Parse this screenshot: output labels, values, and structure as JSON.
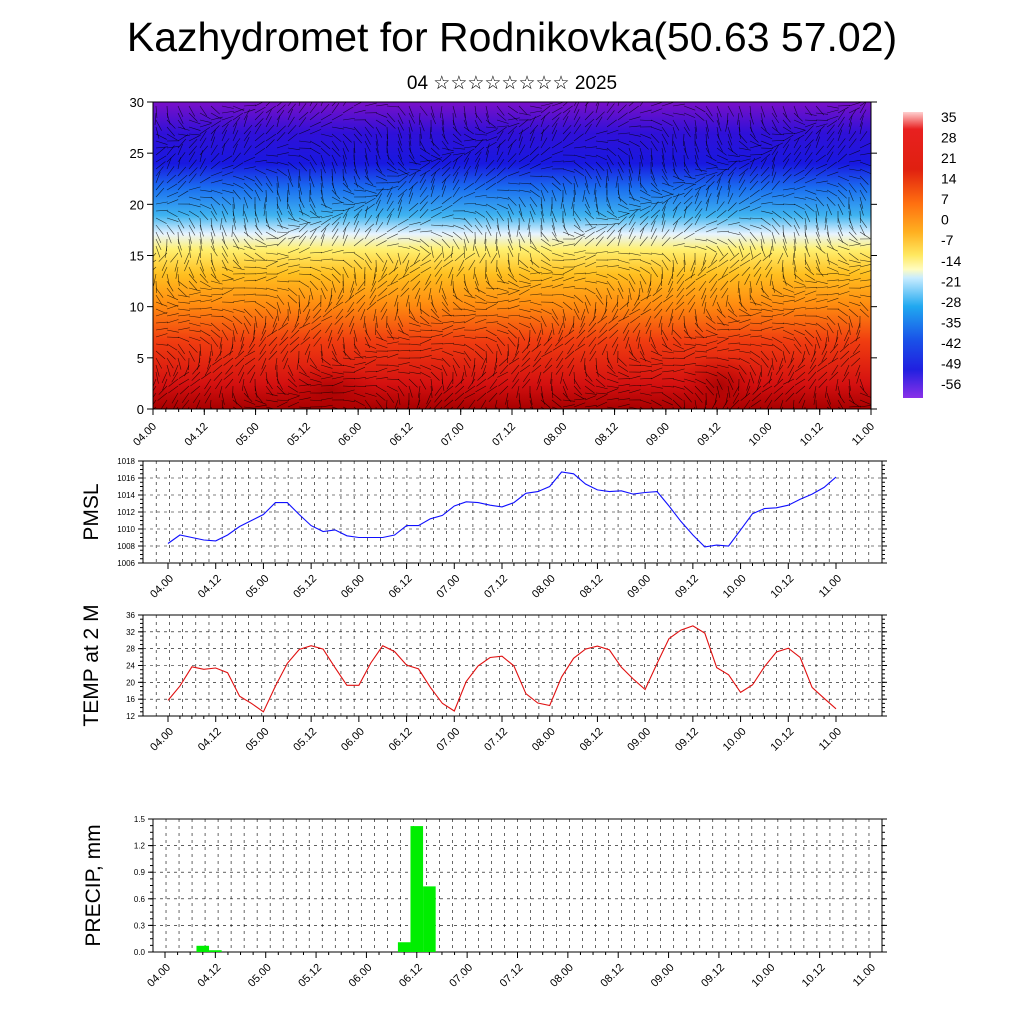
{
  "title": "Kazhydromet for Rodnikovka(50.63 57.02)",
  "subtitle": "04 ☆☆☆☆☆☆☆☆ 2025",
  "chart_data": [
    {
      "type": "heatmap",
      "name": "temperature-wind-cross-section",
      "x_ticks": [
        "04.00",
        "04.12",
        "05.00",
        "05.12",
        "06.00",
        "06.12",
        "07.00",
        "07.12",
        "08.00",
        "08.12",
        "09.00",
        "09.12",
        "10.00",
        "10.12",
        "11.00"
      ],
      "y_ticks": [
        0,
        5,
        10,
        15,
        20,
        25,
        30
      ],
      "ylim": [
        0,
        30
      ],
      "colorbar_labels": [
        "35",
        "28",
        "21",
        "14",
        "7",
        "0",
        "-7",
        "-14",
        "-21",
        "-28",
        "-35",
        "-42",
        "-49",
        "-56"
      ],
      "colors": {
        "hot": "#cc1010",
        "warm": "#ff8a10",
        "mild": "#ffe040",
        "cool": "#3fb4f0",
        "cold": "#1515e0",
        "coldest": "#6a10c8"
      }
    },
    {
      "type": "line",
      "name": "pmsl",
      "ylabel": "PMSL",
      "y_ticks": [
        "1006",
        "1008",
        "1010",
        "1012",
        "1014",
        "1016",
        "1018"
      ],
      "ylim": [
        1006,
        1018
      ],
      "x_ticks": [
        "04.00",
        "04.12",
        "05.00",
        "05.12",
        "06.00",
        "06.12",
        "07.00",
        "07.12",
        "08.00",
        "08.12",
        "09.00",
        "09.12",
        "10.00",
        "10.12",
        "11.00"
      ],
      "color": "#1010ff",
      "values": [
        1008.3,
        1009.3,
        1009.0,
        1008.7,
        1008.6,
        1009.3,
        1010.3,
        1011.0,
        1011.7,
        1013.1,
        1013.1,
        1011.7,
        1010.4,
        1009.7,
        1009.9,
        1009.2,
        1009.0,
        1009.0,
        1009.0,
        1009.3,
        1010.4,
        1010.4,
        1011.2,
        1011.6,
        1012.7,
        1013.2,
        1013.1,
        1012.8,
        1012.6,
        1013.1,
        1014.2,
        1014.4,
        1015.0,
        1016.7,
        1016.5,
        1015.3,
        1014.6,
        1014.4,
        1014.5,
        1014.1,
        1014.3,
        1014.4,
        1012.7,
        1010.9,
        1009.3,
        1007.9,
        1008.1,
        1008.0,
        1009.9,
        1011.8,
        1012.4,
        1012.5,
        1012.8,
        1013.5,
        1014.1,
        1014.9,
        1016.1
      ]
    },
    {
      "type": "line",
      "name": "temp-2m",
      "ylabel": "TEMP at 2 M",
      "y_ticks": [
        "12",
        "16",
        "20",
        "24",
        "28",
        "32",
        "36"
      ],
      "ylim": [
        12,
        36
      ],
      "x_ticks": [
        "04.00",
        "04.12",
        "05.00",
        "05.12",
        "06.00",
        "06.12",
        "07.00",
        "07.12",
        "08.00",
        "08.12",
        "09.00",
        "09.12",
        "10.00",
        "10.12",
        "11.00"
      ],
      "color": "#e01010",
      "values": [
        15.7,
        19.1,
        23.7,
        23.1,
        23.4,
        22.3,
        16.7,
        15.0,
        13.0,
        19.1,
        24.5,
        27.8,
        28.7,
        27.9,
        23.5,
        19.3,
        19.3,
        24.6,
        28.7,
        27.3,
        24.1,
        23.2,
        18.8,
        15.0,
        13.2,
        20.2,
        23.9,
        25.9,
        26.2,
        23.9,
        17.3,
        15.1,
        14.5,
        21.3,
        25.7,
        27.9,
        28.6,
        27.7,
        23.6,
        20.8,
        18.3,
        24.5,
        30.4,
        32.4,
        33.4,
        31.7,
        23.5,
        21.8,
        17.6,
        19.4,
        23.7,
        27.2,
        28.1,
        25.9,
        18.8,
        16.2,
        13.7
      ]
    },
    {
      "type": "bar",
      "name": "precip",
      "ylabel": "PRECIP, mm",
      "y_ticks": [
        "0.0",
        "0.3",
        "0.6",
        "0.9",
        "1.2",
        "1.5"
      ],
      "ylim": [
        0,
        1.5
      ],
      "x_ticks": [
        "04.00",
        "04.12",
        "05.00",
        "05.12",
        "06.00",
        "06.12",
        "07.00",
        "07.12",
        "08.00",
        "08.12",
        "09.00",
        "09.12",
        "10.00",
        "10.12",
        "11.00"
      ],
      "color": "#00ee00",
      "values": [
        0,
        0,
        0,
        0.07,
        0.02,
        0,
        0,
        0,
        0,
        0,
        0,
        0,
        0,
        0,
        0,
        0,
        0,
        0,
        0,
        0.11,
        1.42,
        0.74,
        0,
        0,
        0,
        0,
        0,
        0,
        0,
        0,
        0,
        0,
        0,
        0,
        0,
        0,
        0,
        0,
        0,
        0,
        0,
        0,
        0,
        0,
        0,
        0,
        0,
        0,
        0,
        0,
        0,
        0,
        0,
        0,
        0,
        0
      ]
    }
  ]
}
